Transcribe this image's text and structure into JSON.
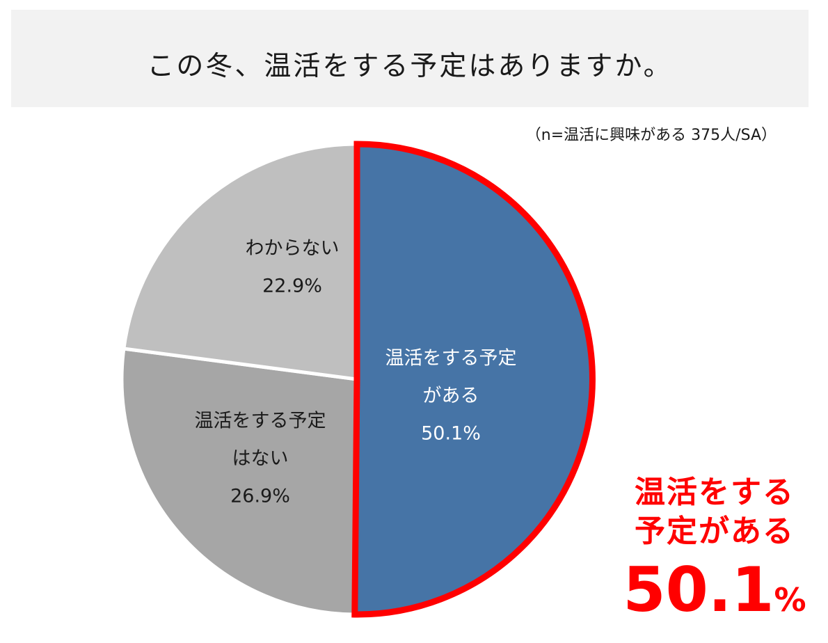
{
  "title": "この冬、温活をする予定はありますか。",
  "note": "（n=温活に興味がある 375人/SA）",
  "chart_data": {
    "type": "pie",
    "slices": [
      {
        "id": "yes",
        "label_lines": [
          "温活をする予定",
          "がある"
        ],
        "value": 50.1,
        "value_label": "50.1%",
        "color": "#4674a6",
        "highlight": true,
        "label_color": "#ffffff"
      },
      {
        "id": "no",
        "label_lines": [
          "温活をする予定",
          "はない"
        ],
        "value": 26.9,
        "value_label": "26.9%",
        "color": "#a6a6a6",
        "label_color": "#1a1a1a"
      },
      {
        "id": "unknown",
        "label_lines": [
          "わからない"
        ],
        "value": 22.9,
        "value_label": "22.9%",
        "color": "#bfbfbf",
        "label_color": "#1a1a1a"
      }
    ],
    "highlight_color": "#ff0000"
  },
  "callout": {
    "line1": "温活をする",
    "line2": "予定がある",
    "value": "50.1",
    "unit": "%"
  }
}
